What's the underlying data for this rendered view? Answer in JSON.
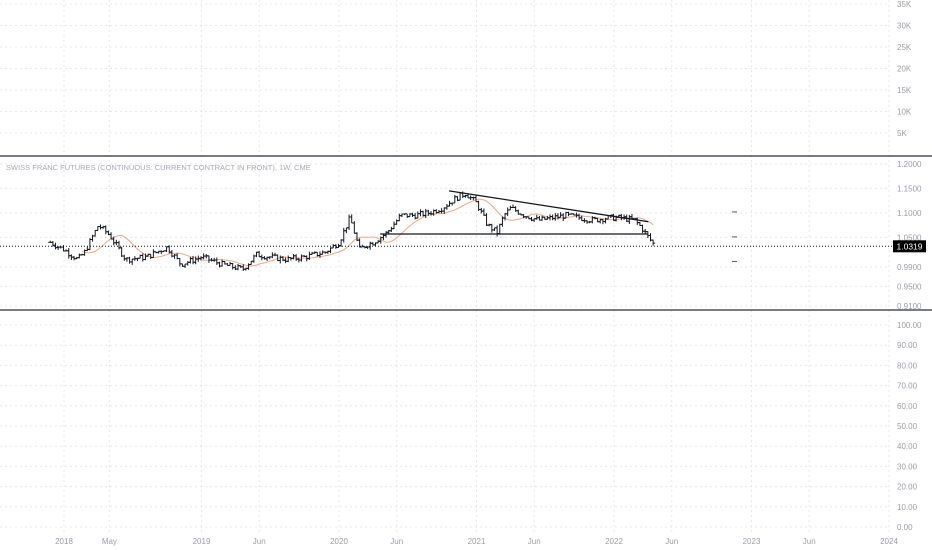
{
  "chart_data": {
    "type": "bar",
    "title": "SWISS FRANC FUTURES (CONTINUOUS: CURRENT CONTRACT IN FRONT), 1W, CME",
    "x_axis_labels": [
      "2018",
      "May",
      "2019",
      "Jun",
      "2020",
      "Jun",
      "2021",
      "Jun",
      "2022",
      "Jun",
      "2023",
      "Jun",
      "2024"
    ],
    "panes": [
      {
        "name": "volume",
        "y_ticks": [
          "35K",
          "30K",
          "25K",
          "20K",
          "15K",
          "10K",
          "5K"
        ]
      },
      {
        "name": "price",
        "y_ticks": [
          "1.2000",
          "1.1500",
          "1.1000",
          "1.0500",
          "0.9900",
          "0.9500",
          "0.9100"
        ],
        "ylim": [
          0.906,
          1.212
        ],
        "last_price_label": "1.0319",
        "last_price": 1.0319,
        "series": {
          "time": [
            2017.9,
            2018.0,
            2018.1,
            2018.15,
            2018.25,
            2018.33,
            2018.45,
            2018.6,
            2018.75,
            2018.85,
            2019.0,
            2019.15,
            2019.3,
            2019.4,
            2019.5,
            2019.62,
            2019.75,
            2019.9,
            2020.0,
            2020.08,
            2020.15,
            2020.2,
            2020.25,
            2020.35,
            2020.45,
            2020.55,
            2020.65,
            2020.75,
            2020.85,
            2020.92,
            2021.0,
            2021.08,
            2021.15,
            2021.2,
            2021.25,
            2021.35,
            2021.45,
            2021.55,
            2021.65,
            2021.75,
            2021.85,
            2021.95,
            2022.05,
            2022.15,
            2022.2,
            2022.25,
            2022.3
          ],
          "close": [
            1.04,
            1.025,
            1.005,
            1.02,
            1.075,
            1.055,
            1.005,
            1.01,
            1.03,
            0.995,
            1.01,
            0.995,
            0.985,
            1.015,
            1.01,
            1.005,
            1.01,
            1.02,
            1.04,
            1.09,
            1.025,
            1.035,
            1.04,
            1.06,
            1.095,
            1.095,
            1.1,
            1.11,
            1.13,
            1.14,
            1.12,
            1.075,
            1.06,
            1.095,
            1.11,
            1.095,
            1.085,
            1.09,
            1.095,
            1.09,
            1.085,
            1.09,
            1.09,
            1.085,
            1.07,
            1.05,
            1.0319
          ]
        },
        "moving_average_color": "#f4a582",
        "trendlines": [
          {
            "name": "upper-resistance",
            "from": [
              2020.8,
              1.145
            ],
            "to": [
              2022.25,
              1.082
            ]
          },
          {
            "name": "horizontal-support",
            "from": [
              2020.3,
              1.057
            ],
            "to": [
              2022.25,
              1.057
            ]
          },
          {
            "name": "last-price-dotted",
            "from": [
              2017.9,
              1.0319
            ],
            "to": [
              2023.6,
              1.0319
            ]
          }
        ],
        "side_markers": [
          1.102,
          1.051,
          1.001
        ]
      },
      {
        "name": "oscillator",
        "y_ticks": [
          "100.00",
          "90.00",
          "80.00",
          "70.00",
          "60.00",
          "50.00",
          "40.00",
          "30.00",
          "20.00",
          "10.00",
          "0.00"
        ]
      }
    ],
    "colors": {
      "bars": "#131722",
      "axis_text": "#9a9ea8",
      "grid": "#e6e8ec",
      "pane_separator": "#2a2e39",
      "price_label_bg": "#000000"
    },
    "grid": true
  }
}
